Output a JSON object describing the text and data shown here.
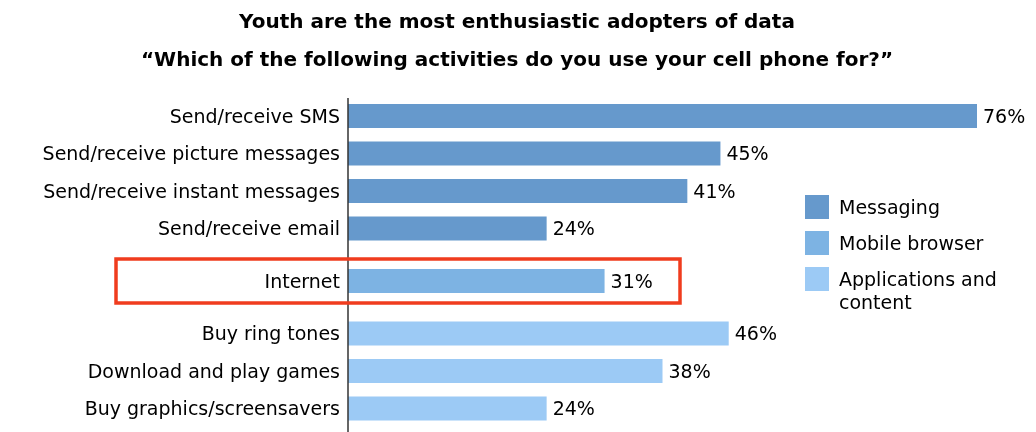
{
  "chart_data": {
    "type": "bar",
    "orientation": "horizontal",
    "title": "Youth are the most enthusiastic adopters of data",
    "subtitle": "“Which of the following activities do you use your cell phone for?”",
    "categories": [
      "Send/receive SMS",
      "Send/receive picture messages",
      "Send/receive instant messages",
      "Send/receive email",
      "Internet",
      "Buy ring tones",
      "Download and play games",
      "Buy graphics/screensavers"
    ],
    "series": [
      {
        "name": "Messaging",
        "color": "#6699cc",
        "values": [
          76,
          45,
          41,
          24,
          null,
          null,
          null,
          null
        ],
        "value_labels": [
          "76%",
          "45%",
          "41%",
          "24%",
          null,
          null,
          null,
          null
        ]
      },
      {
        "name": "Mobile browser",
        "color": "#7db3e3",
        "values": [
          null,
          null,
          null,
          null,
          31,
          null,
          null,
          null
        ],
        "value_labels": [
          null,
          null,
          null,
          null,
          "31%",
          null,
          null,
          null
        ]
      },
      {
        "name": "Applications and content",
        "color": "#9ccaf5",
        "values": [
          null,
          null,
          null,
          null,
          null,
          46,
          38,
          24
        ],
        "value_labels": [
          null,
          null,
          null,
          null,
          null,
          "46%",
          "38%",
          "24%"
        ]
      }
    ],
    "legend": "right"
  }
}
